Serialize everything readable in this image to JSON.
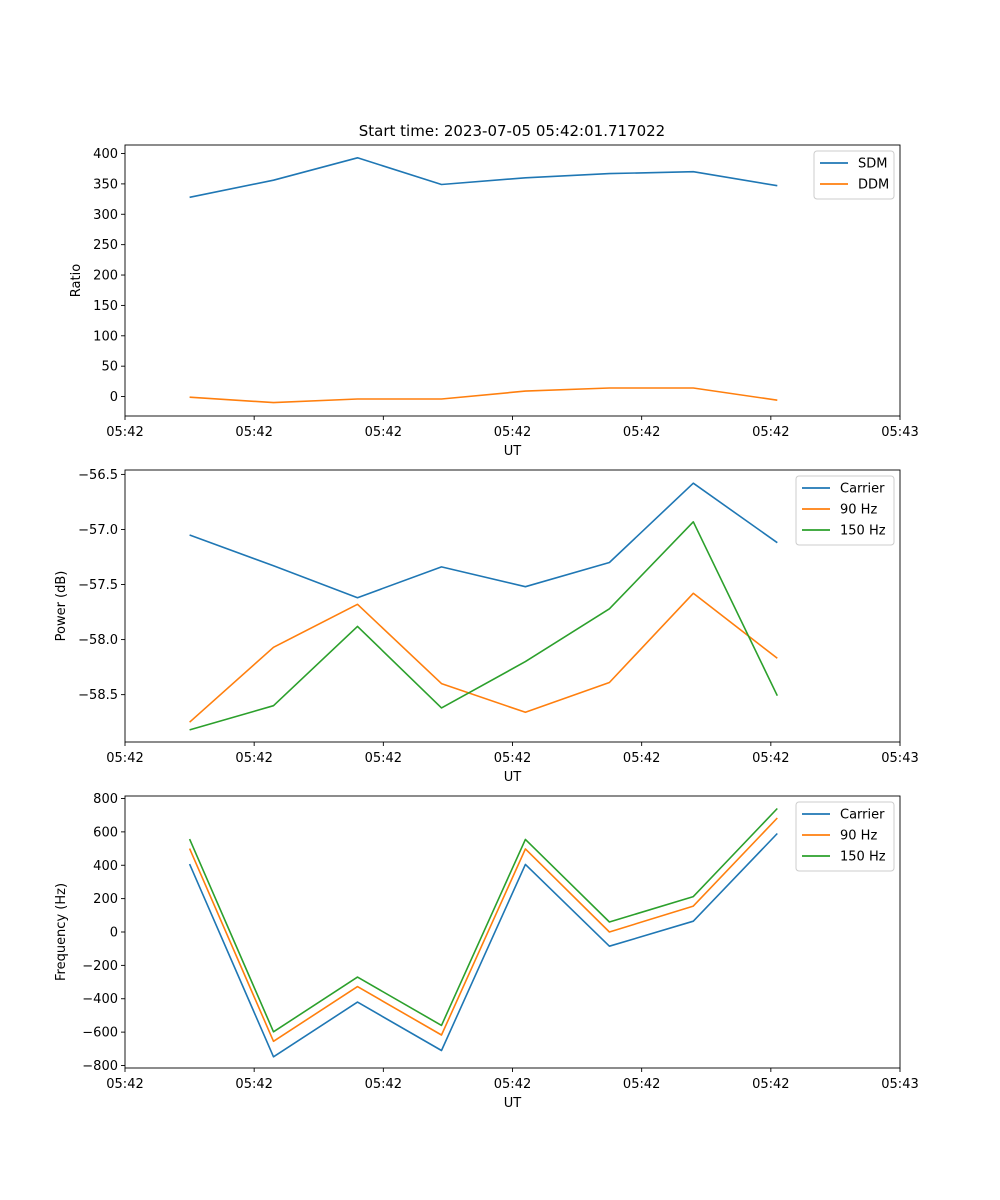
{
  "figure": {
    "title": "Start time: 2023-07-05 05:42:01.717022"
  },
  "chart_data": [
    {
      "type": "line",
      "title": "Start time: 2023-07-05 05:42:01.717022",
      "xlabel": "UT",
      "ylabel": "Ratio",
      "xticks": [
        "05:42",
        "05:42",
        "05:42",
        "05:42",
        "05:42",
        "05:42",
        "05:43"
      ],
      "xlim": [
        0,
        12
      ],
      "x": [
        1,
        2.3,
        3.6,
        4.9,
        6.2,
        7.5,
        8.8,
        10.1
      ],
      "ylim": [
        -32,
        414
      ],
      "yticks": [
        0,
        50,
        100,
        150,
        200,
        250,
        300,
        350,
        400
      ],
      "legend": "top-right",
      "series": [
        {
          "name": "SDM",
          "color": "#1f77b4",
          "values": [
            328,
            356,
            393,
            349,
            360,
            367,
            370,
            347
          ]
        },
        {
          "name": "DDM",
          "color": "#ff7f0e",
          "values": [
            -1,
            -10,
            -4,
            -4,
            9,
            14,
            14,
            -6
          ]
        }
      ]
    },
    {
      "type": "line",
      "title": "",
      "xlabel": "UT",
      "ylabel": "Power (dB)",
      "xticks": [
        "05:42",
        "05:42",
        "05:42",
        "05:42",
        "05:42",
        "05:42",
        "05:43"
      ],
      "xlim": [
        0,
        12
      ],
      "x": [
        1,
        2.3,
        3.6,
        4.9,
        6.2,
        7.5,
        8.8,
        10.1
      ],
      "ylim": [
        -58.93,
        -56.46
      ],
      "yticks": [
        -58.5,
        -58.0,
        -57.5,
        -57.0,
        -56.5
      ],
      "ytick_labels": [
        "−58.5",
        "−58.0",
        "−57.5",
        "−57.0",
        "−56.5"
      ],
      "legend": "top-right",
      "series": [
        {
          "name": "Carrier",
          "color": "#1f77b4",
          "values": [
            -57.05,
            -57.33,
            -57.62,
            -57.34,
            -57.52,
            -57.3,
            -56.58,
            -57.12
          ]
        },
        {
          "name": "90 Hz",
          "color": "#ff7f0e",
          "values": [
            -58.75,
            -58.07,
            -57.68,
            -58.4,
            -58.66,
            -58.39,
            -57.58,
            -58.17
          ]
        },
        {
          "name": "150 Hz",
          "color": "#2ca02c",
          "values": [
            -58.82,
            -58.6,
            -57.88,
            -58.62,
            -58.2,
            -57.72,
            -56.93,
            -58.51
          ]
        }
      ]
    },
    {
      "type": "line",
      "title": "",
      "xlabel": "UT",
      "ylabel": "Frequency (Hz)",
      "xticks": [
        "05:42",
        "05:42",
        "05:42",
        "05:42",
        "05:42",
        "05:42",
        "05:43"
      ],
      "xlim": [
        0,
        12
      ],
      "x": [
        1,
        2.3,
        3.6,
        4.9,
        6.2,
        7.5,
        8.8,
        10.1
      ],
      "ylim": [
        -815,
        815
      ],
      "yticks": [
        -800,
        -600,
        -400,
        -200,
        0,
        200,
        400,
        600,
        800
      ],
      "ytick_labels": [
        "−800",
        "−600",
        "−400",
        "−200",
        "0",
        "200",
        "400",
        "600",
        "800"
      ],
      "legend": "top-right",
      "series": [
        {
          "name": "Carrier",
          "color": "#1f77b4",
          "values": [
            407,
            -748,
            -420,
            -710,
            405,
            -85,
            65,
            590
          ]
        },
        {
          "name": "90 Hz",
          "color": "#ff7f0e",
          "values": [
            500,
            -655,
            -327,
            -617,
            498,
            0,
            155,
            683
          ]
        },
        {
          "name": "150 Hz",
          "color": "#2ca02c",
          "values": [
            557,
            -598,
            -270,
            -560,
            555,
            60,
            212,
            740
          ]
        }
      ]
    }
  ]
}
